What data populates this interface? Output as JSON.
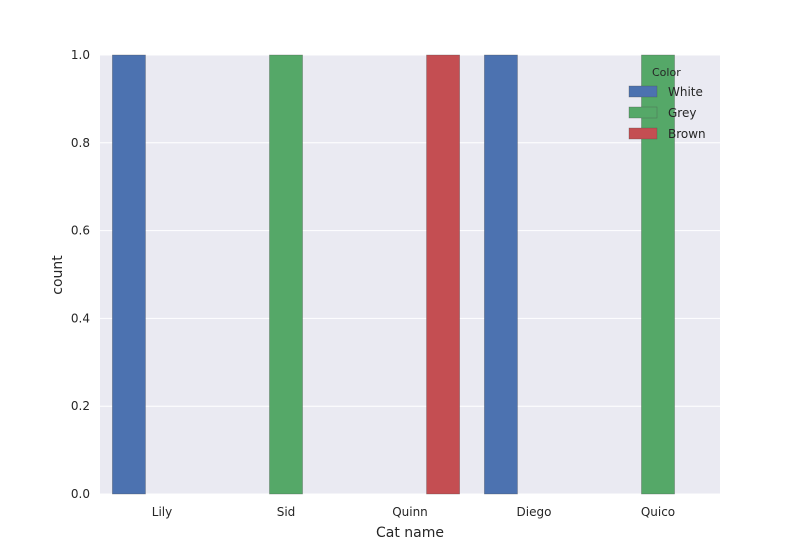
{
  "chart_data": {
    "type": "bar",
    "title": "",
    "xlabel": "Cat name",
    "ylabel": "count",
    "categories": [
      "Lily",
      "Sid",
      "Quinn",
      "Diego",
      "Quico"
    ],
    "ylim": [
      0,
      1.0
    ],
    "yticks": [
      "0.0",
      "0.2",
      "0.4",
      "0.6",
      "0.8",
      "1.0"
    ],
    "grid": true,
    "legend": {
      "title": "Color",
      "placement": "top-right"
    },
    "series": [
      {
        "name": "White",
        "color": "#4c72b0",
        "values": [
          1,
          0,
          0,
          1,
          0
        ]
      },
      {
        "name": "Grey",
        "color": "#55a868",
        "values": [
          0,
          1,
          0,
          0,
          1
        ]
      },
      {
        "name": "Brown",
        "color": "#c44e52",
        "values": [
          0,
          0,
          1,
          0,
          0
        ]
      }
    ],
    "background": "#eaeaf2"
  }
}
